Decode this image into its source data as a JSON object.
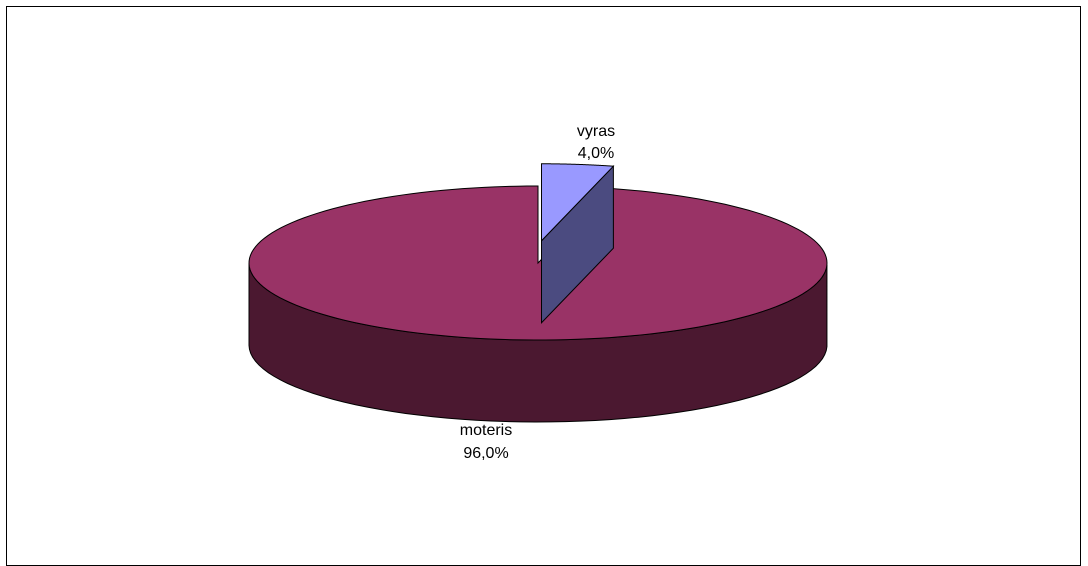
{
  "chart_data": {
    "type": "pie",
    "style": "3d-exploded",
    "title": "",
    "slices": [
      {
        "category": "moteris",
        "value": 96.0,
        "label": "96,0%",
        "color": "#993366",
        "side_color": "#4b1830"
      },
      {
        "category": "vyras",
        "value": 4.0,
        "label": "4,0%",
        "color": "#9999ff",
        "side_color": "#4b4b80"
      }
    ],
    "legend": "none"
  }
}
